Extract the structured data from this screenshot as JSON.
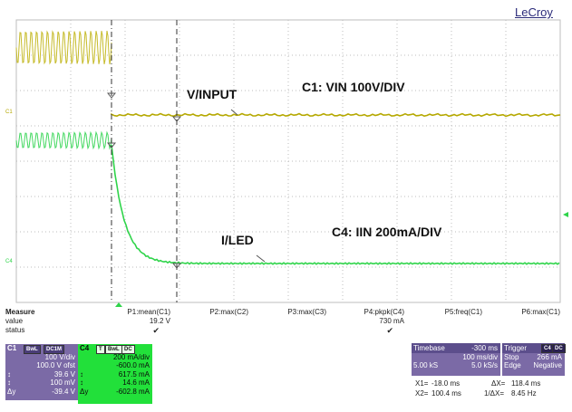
{
  "brand": "LeCroy",
  "annotations": {
    "vinput": "V/INPUT",
    "c1_scale": "C1: VIN 100V/DIV",
    "iled": "I/LED",
    "c4_scale": "C4: IIN 200mA/DIV"
  },
  "channel_markers": {
    "c1": "C1",
    "c4": "C4"
  },
  "colors": {
    "grid": "#bdbdbd",
    "c1_trace": "#b5a800",
    "c1_trace_early": "#c6bb2a",
    "c4_trace": "#2fd44a",
    "c4_trace_early": "#43d860",
    "panel_purple": "#7b6aa6",
    "panel_green": "#22e03a"
  },
  "measure": {
    "title": "Measure",
    "row_labels": [
      "value",
      "status"
    ],
    "columns": [
      {
        "param": "P1:mean(C1)",
        "value": "19.2 V",
        "status": "check-icon"
      },
      {
        "param": "P2:max(C2)",
        "value": "",
        "status": ""
      },
      {
        "param": "P3:max(C3)",
        "value": "",
        "status": ""
      },
      {
        "param": "P4:pkpk(C4)",
        "value": "730 mA",
        "status": "check-icon"
      },
      {
        "param": "P5:freq(C1)",
        "value": "",
        "status": ""
      },
      {
        "param": "P6:max(C1)",
        "value": "",
        "status": ""
      }
    ]
  },
  "c1_panel": {
    "name": "C1",
    "chips": [
      "BwL",
      "DC1M"
    ],
    "lines": [
      {
        "k": "",
        "v": "100 V/div"
      },
      {
        "k": "",
        "v": "100.0 V ofst"
      },
      {
        "k": "↕",
        "v": "39.6 V"
      },
      {
        "k": "↕",
        "v": "100 mV"
      },
      {
        "k": "Δy",
        "v": "-39.4 V"
      }
    ]
  },
  "c4_panel": {
    "name": "C4",
    "chips": [
      "T",
      "BwL",
      "DC"
    ],
    "lines": [
      {
        "k": "",
        "v": "200 mA/div"
      },
      {
        "k": "",
        "v": "-600.0 mA"
      },
      {
        "k": "↕",
        "v": "617.5 mA"
      },
      {
        "k": "↕",
        "v": "14.6 mA"
      },
      {
        "k": "Δy",
        "v": "-602.8 mA"
      }
    ]
  },
  "timebase": {
    "label": "Timebase",
    "delay": "-300 ms",
    "per_div": "100 ms/div",
    "samples": "5.00 kS",
    "rate": "5.0 kS/s"
  },
  "trigger": {
    "label": "Trigger",
    "chips": [
      "C4",
      "DC"
    ],
    "mode": "Stop",
    "level": "266 mA",
    "type": "Edge",
    "slope": "Negative"
  },
  "cursors": {
    "x1_label": "X1=",
    "x1": "-18.0 ms",
    "dx_label": "ΔX=",
    "dx": "118.4 ms",
    "x2_label": "X2=",
    "x2": "100.4 ms",
    "inv_label": "1/ΔX=",
    "inv": "8.45 Hz"
  }
}
